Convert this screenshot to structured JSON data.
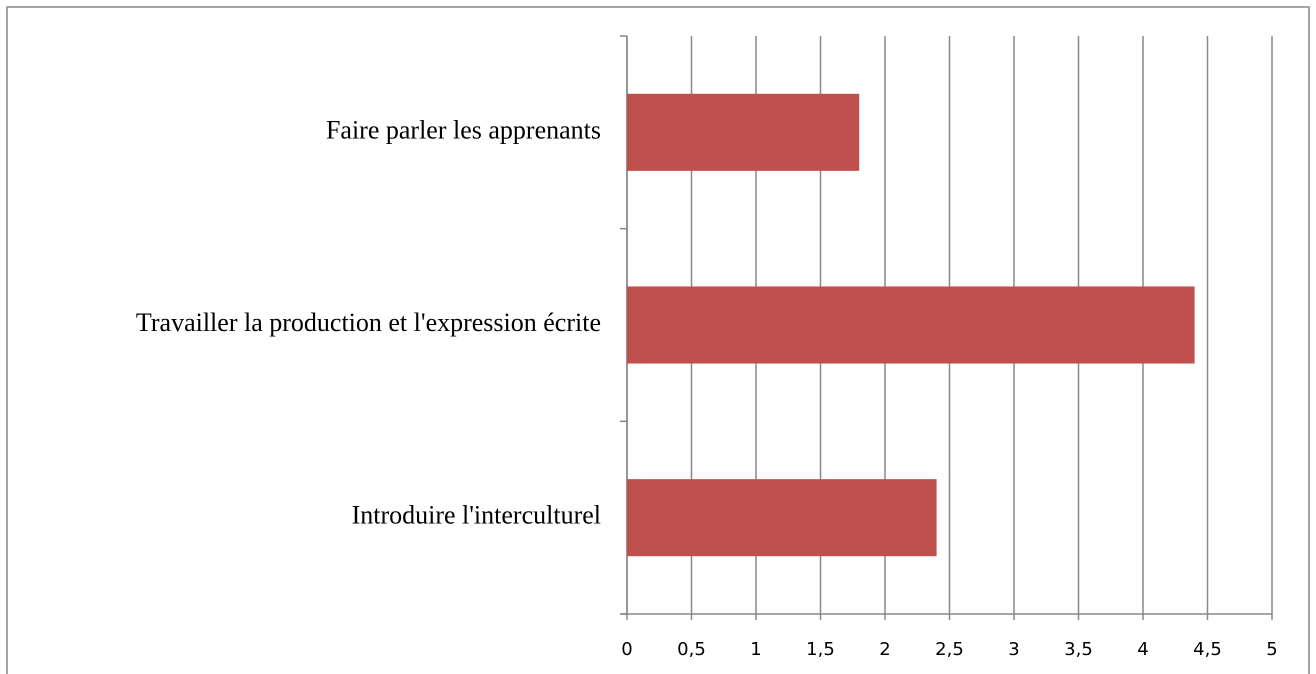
{
  "chart_data": {
    "type": "bar",
    "orientation": "horizontal",
    "categories": [
      "Faire parler les apprenants",
      "Travailler la production et l'expression écrite",
      "Introduire l'interculturel"
    ],
    "values": [
      1.8,
      4.4,
      2.4
    ],
    "color": "#c0504d",
    "xlim": [
      0,
      5
    ],
    "xticks": [
      0,
      {
        "value": 0.5,
        "label": "0,5"
      },
      1,
      {
        "value": 1.5,
        "label": "1,5"
      },
      2,
      {
        "value": 2.5,
        "label": "2,5"
      },
      3,
      {
        "value": 3.5,
        "label": "3,5"
      },
      4,
      {
        "value": 4.5,
        "label": "4,5"
      },
      5
    ],
    "grid": true
  }
}
